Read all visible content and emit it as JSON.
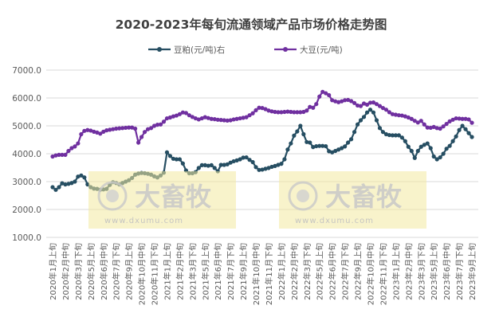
{
  "chart_data": {
    "type": "line",
    "title": "2020-2023年每旬流通领域产品市场价格走势图",
    "ylim": [
      1000,
      7000
    ],
    "yticks": [
      "1000.0",
      "2000.0",
      "3000.0",
      "4000.0",
      "5000.0",
      "6000.0",
      "7000.0"
    ],
    "grid": true,
    "legend_position": "top",
    "tick_every": 4,
    "categories": [
      "2020年1月上旬",
      "2020年1月中旬",
      "2020年1月下旬",
      "2020年2月上旬",
      "2020年2月中旬",
      "2020年2月下旬",
      "2020年3月上旬",
      "2020年3月中旬",
      "2020年3月下旬",
      "2020年4月上旬",
      "2020年4月中旬",
      "2020年4月下旬",
      "2020年5月上旬",
      "2020年5月中旬",
      "2020年5月下旬",
      "2020年6月上旬",
      "2020年6月中旬",
      "2020年6月下旬",
      "2020年7月上旬",
      "2020年7月中旬",
      "2020年7月下旬",
      "2020年8月上旬",
      "2020年8月中旬",
      "2020年8月下旬",
      "2020年9月上旬",
      "2020年9月中旬",
      "2020年9月下旬",
      "2020年10月上旬",
      "2020年10月中旬",
      "2020年10月下旬",
      "2020年11月上旬",
      "2020年11月中旬",
      "2020年11月下旬",
      "2020年12月上旬",
      "2020年12月中旬",
      "2020年12月下旬",
      "2021年1月上旬",
      "2021年1月中旬",
      "2021年1月下旬",
      "2021年2月上旬",
      "2021年2月中旬",
      "2021年2月下旬",
      "2021年3月上旬",
      "2021年3月中旬",
      "2021年3月下旬",
      "2021年4月上旬",
      "2021年4月中旬",
      "2021年4月下旬",
      "2021年5月上旬",
      "2021年5月中旬",
      "2021年5月下旬",
      "2021年6月上旬",
      "2021年6月中旬",
      "2021年6月下旬",
      "2021年7月上旬",
      "2021年7月中旬",
      "2021年7月下旬",
      "2021年8月上旬",
      "2021年8月中旬",
      "2021年8月下旬",
      "2021年9月上旬",
      "2021年9月中旬",
      "2021年9月下旬",
      "2021年10月上旬",
      "2021年10月中旬",
      "2021年10月下旬",
      "2021年11月上旬",
      "2021年11月中旬",
      "2021年11月下旬",
      "2021年12月上旬",
      "2021年12月中旬",
      "2021年12月下旬",
      "2022年1月上旬",
      "2022年1月中旬",
      "2022年1月下旬",
      "2022年2月上旬",
      "2022年2月中旬",
      "2022年2月下旬",
      "2022年3月上旬",
      "2022年3月中旬",
      "2022年3月下旬",
      "2022年4月上旬",
      "2022年4月中旬",
      "2022年4月下旬",
      "2022年5月上旬",
      "2022年5月中旬",
      "2022年5月下旬",
      "2022年6月上旬",
      "2022年6月中旬",
      "2022年6月下旬",
      "2022年7月上旬",
      "2022年7月中旬",
      "2022年7月下旬",
      "2022年8月上旬",
      "2022年8月中旬",
      "2022年8月下旬",
      "2022年9月上旬",
      "2022年9月中旬",
      "2022年9月下旬",
      "2022年10月上旬",
      "2022年10月中旬",
      "2022年10月下旬",
      "2022年11月上旬",
      "2022年11月中旬",
      "2022年11月下旬",
      "2022年12月上旬",
      "2022年12月中旬",
      "2022年12月下旬",
      "2023年1月上旬",
      "2023年1月中旬",
      "2023年1月下旬",
      "2023年2月上旬",
      "2023年2月中旬",
      "2023年2月下旬",
      "2023年3月上旬",
      "2023年3月中旬",
      "2023年3月下旬",
      "2023年4月上旬",
      "2023年4月中旬",
      "2023年4月下旬",
      "2023年5月上旬",
      "2023年5月中旬",
      "2023年5月下旬",
      "2023年6月上旬",
      "2023年6月中旬",
      "2023年6月下旬",
      "2023年7月上旬",
      "2023年7月中旬",
      "2023年7月下旬",
      "2023年8月上旬",
      "2023年8月中旬",
      "2023年8月下旬",
      "2023年9月上旬"
    ],
    "series": [
      {
        "name": "豆粕(元/吨)右",
        "color": "#264e62",
        "values": [
          2800,
          2705,
          2800,
          2940,
          2900,
          2920,
          2950,
          3000,
          3180,
          3220,
          3150,
          2900,
          2800,
          2750,
          2740,
          2710,
          2720,
          2740,
          2880,
          2980,
          2950,
          2900,
          2950,
          3000,
          3050,
          3130,
          3250,
          3290,
          3310,
          3300,
          3280,
          3250,
          3190,
          3150,
          3220,
          3320,
          4050,
          3920,
          3820,
          3800,
          3800,
          3650,
          3400,
          3300,
          3300,
          3340,
          3490,
          3590,
          3590,
          3570,
          3590,
          3490,
          3370,
          3600,
          3600,
          3620,
          3680,
          3730,
          3760,
          3800,
          3860,
          3870,
          3780,
          3700,
          3520,
          3420,
          3430,
          3460,
          3490,
          3530,
          3560,
          3600,
          3640,
          3800,
          4150,
          4370,
          4650,
          4800,
          5000,
          4700,
          4420,
          4400,
          4240,
          4270,
          4280,
          4280,
          4270,
          4090,
          4050,
          4100,
          4150,
          4200,
          4260,
          4400,
          4520,
          4780,
          5050,
          5200,
          5320,
          5480,
          5580,
          5480,
          5200,
          4920,
          4780,
          4700,
          4670,
          4660,
          4660,
          4660,
          4580,
          4450,
          4250,
          4100,
          3850,
          4100,
          4250,
          4320,
          4370,
          4200,
          3900,
          3800,
          3870,
          4000,
          4180,
          4280,
          4450,
          4620,
          4850,
          5000,
          4880,
          4740,
          4600
        ]
      },
      {
        "name": "大豆(元/吨)",
        "color": "#7030a0",
        "values": [
          3900,
          3940,
          3960,
          3960,
          3960,
          4100,
          4200,
          4260,
          4370,
          4700,
          4820,
          4850,
          4830,
          4790,
          4760,
          4720,
          4790,
          4840,
          4860,
          4880,
          4900,
          4910,
          4920,
          4930,
          4940,
          4940,
          4900,
          4400,
          4600,
          4780,
          4880,
          4920,
          5000,
          5040,
          5050,
          5150,
          5270,
          5300,
          5340,
          5370,
          5420,
          5480,
          5460,
          5380,
          5320,
          5270,
          5230,
          5270,
          5310,
          5280,
          5250,
          5240,
          5220,
          5210,
          5200,
          5190,
          5200,
          5230,
          5250,
          5270,
          5290,
          5310,
          5380,
          5450,
          5560,
          5650,
          5640,
          5600,
          5550,
          5520,
          5500,
          5490,
          5490,
          5500,
          5510,
          5500,
          5490,
          5490,
          5490,
          5500,
          5550,
          5680,
          5650,
          5780,
          6050,
          6220,
          6170,
          6100,
          5920,
          5880,
          5850,
          5880,
          5920,
          5930,
          5890,
          5820,
          5730,
          5710,
          5800,
          5760,
          5830,
          5840,
          5780,
          5710,
          5640,
          5580,
          5490,
          5420,
          5400,
          5380,
          5370,
          5340,
          5300,
          5250,
          5180,
          5120,
          5180,
          5050,
          4940,
          4930,
          4960,
          4920,
          4900,
          4980,
          5070,
          5160,
          5220,
          5270,
          5260,
          5250,
          5250,
          5230,
          5110
        ]
      }
    ]
  },
  "watermark": {
    "brand": "大畜牧",
    "url": "www.dxumu.com"
  }
}
